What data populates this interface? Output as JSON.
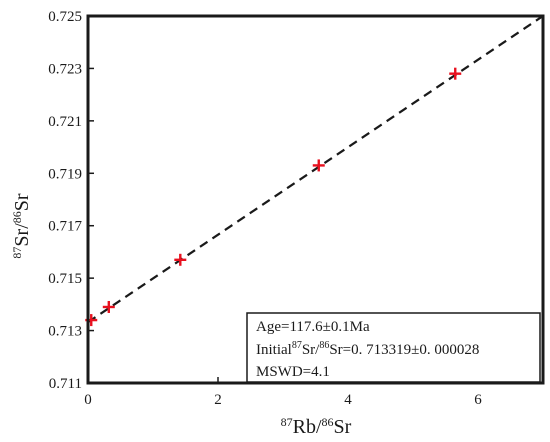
{
  "chart_data": {
    "type": "scatter",
    "title": "",
    "xlabel": {
      "iso1": "87",
      "el1": "Rb/",
      "iso2": "86",
      "el2": "Sr"
    },
    "ylabel": {
      "iso1": "87",
      "el1": "Sr/",
      "iso2": "86",
      "el2": "Sr"
    },
    "xlim": [
      0,
      7
    ],
    "ylim": [
      0.711,
      0.725
    ],
    "xticks": [
      {
        "value": 0,
        "label": "0"
      },
      {
        "value": 2,
        "label": "2"
      },
      {
        "value": 4,
        "label": "4"
      },
      {
        "value": 6,
        "label": "6"
      }
    ],
    "yticks": [
      {
        "value": 0.711,
        "label": "0.711"
      },
      {
        "value": 0.713,
        "label": "0.713"
      },
      {
        "value": 0.715,
        "label": "0.715"
      },
      {
        "value": 0.717,
        "label": "0.717"
      },
      {
        "value": 0.719,
        "label": "0.719"
      },
      {
        "value": 0.721,
        "label": "0.721"
      },
      {
        "value": 0.723,
        "label": "0.723"
      },
      {
        "value": 0.725,
        "label": "0.725"
      }
    ],
    "series": [
      {
        "marker": "plus",
        "color": "#e8101e",
        "points": [
          {
            "x": 0.05,
            "y": 0.7134
          },
          {
            "x": 0.32,
            "y": 0.7139
          },
          {
            "x": 1.42,
            "y": 0.7157
          },
          {
            "x": 3.55,
            "y": 0.7193
          },
          {
            "x": 5.65,
            "y": 0.7228
          }
        ]
      }
    ],
    "isochron": {
      "intercept": 0.713319,
      "slope": 0.0016687,
      "style": "dashed",
      "color": "#1a1a1a"
    },
    "grid": false,
    "legend": {
      "placement": "bottom-right",
      "lines": {
        "age": "Age=117.6±0.1Ma",
        "initial_a": "Initial",
        "initial_iso1": "87",
        "initial_b": "Sr/",
        "initial_iso2": "86",
        "initial_c": "Sr=0. 713319±0. 000028",
        "mswd": "MSWD=4.1"
      }
    }
  }
}
